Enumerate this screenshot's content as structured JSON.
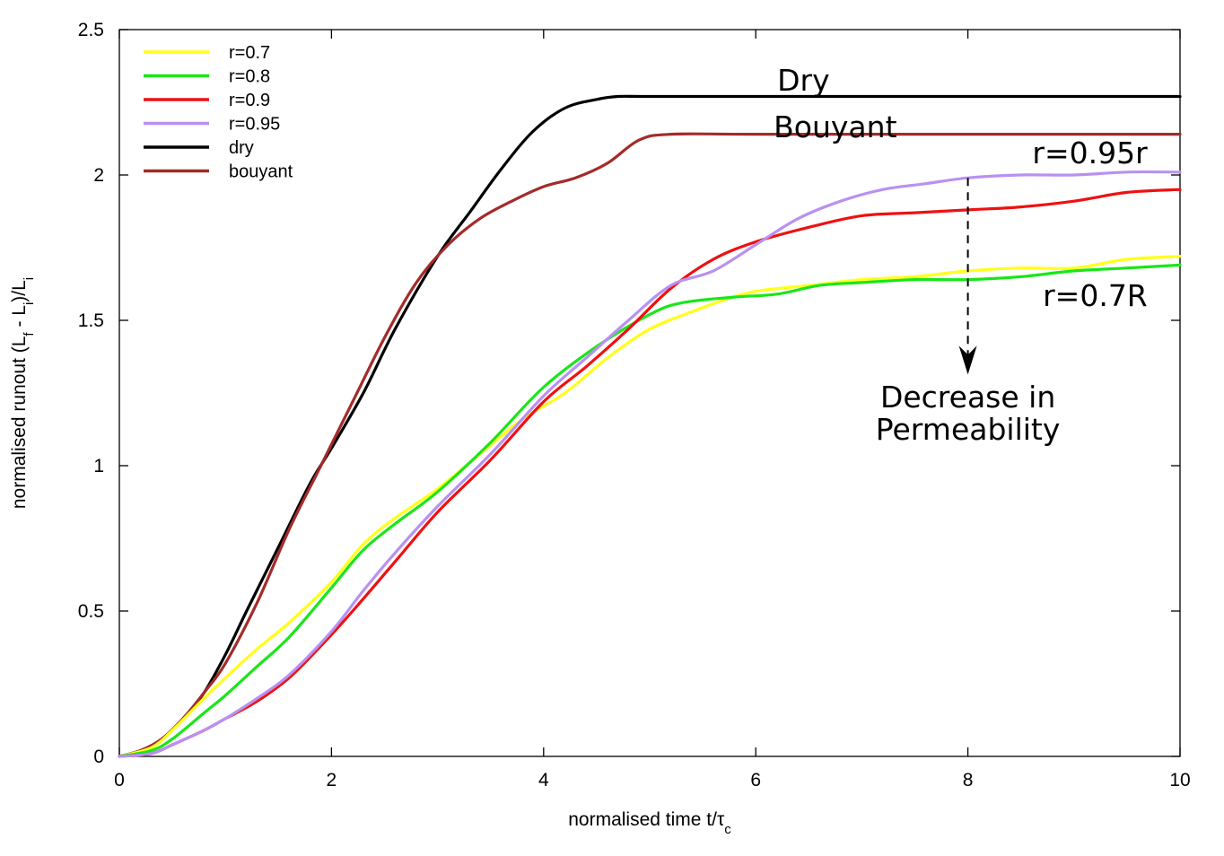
{
  "chart_data": {
    "type": "line",
    "title": "",
    "xlabel": {
      "main": "normalised time t/τ",
      "sub": "c"
    },
    "ylabel": {
      "parts": [
        "normalised runout (L",
        "f",
        " - L",
        "i",
        ")/L",
        "i"
      ]
    },
    "xlim": [
      0,
      10
    ],
    "ylim": [
      0,
      2.5
    ],
    "x_ticks": [
      0,
      2,
      4,
      6,
      8,
      10
    ],
    "x_tick_labels": [
      "0",
      "2",
      "4",
      "6",
      "8",
      "10"
    ],
    "y_ticks": [
      0,
      0.5,
      1,
      1.5,
      2,
      2.5
    ],
    "y_tick_labels": [
      "0",
      "0.5",
      "1",
      "1.5",
      "2",
      "2.5"
    ],
    "legend_position": "top-left",
    "series": [
      {
        "name": "r=0.7",
        "color": "#ffff1a",
        "x": [
          0,
          0.3,
          0.5,
          0.8,
          1.0,
          1.3,
          1.6,
          2.0,
          2.3,
          2.6,
          3.0,
          3.4,
          3.8,
          4.2,
          4.6,
          5.0,
          5.4,
          5.7,
          6.0,
          6.5,
          7.0,
          7.5,
          8.0,
          8.5,
          9.0,
          9.5,
          10.0
        ],
        "y": [
          0,
          0.03,
          0.09,
          0.2,
          0.27,
          0.37,
          0.46,
          0.6,
          0.73,
          0.82,
          0.92,
          1.04,
          1.16,
          1.25,
          1.37,
          1.47,
          1.53,
          1.57,
          1.6,
          1.62,
          1.64,
          1.65,
          1.67,
          1.68,
          1.68,
          1.71,
          1.72
        ]
      },
      {
        "name": "r=0.8",
        "color": "#19e619",
        "x": [
          0,
          0.3,
          0.5,
          0.8,
          1.0,
          1.3,
          1.6,
          2.0,
          2.3,
          2.6,
          3.0,
          3.5,
          4.0,
          4.5,
          5.0,
          5.3,
          5.8,
          6.2,
          6.6,
          7.0,
          7.5,
          8.0,
          8.5,
          9.0,
          9.5,
          10.0
        ],
        "y": [
          0,
          0.02,
          0.06,
          0.15,
          0.21,
          0.31,
          0.41,
          0.58,
          0.71,
          0.8,
          0.91,
          1.08,
          1.27,
          1.41,
          1.52,
          1.56,
          1.58,
          1.59,
          1.62,
          1.63,
          1.64,
          1.64,
          1.65,
          1.67,
          1.68,
          1.69
        ]
      },
      {
        "name": "r=0.9",
        "color": "#ee1111",
        "x": [
          0,
          0.3,
          0.5,
          0.8,
          1.0,
          1.3,
          1.6,
          1.9,
          2.2,
          2.6,
          3.0,
          3.5,
          4.0,
          4.4,
          4.8,
          5.2,
          5.6,
          6.0,
          6.5,
          7.0,
          7.5,
          8.0,
          8.5,
          9.0,
          9.5,
          10.0
        ],
        "y": [
          0,
          0.01,
          0.04,
          0.09,
          0.13,
          0.19,
          0.27,
          0.38,
          0.5,
          0.67,
          0.84,
          1.02,
          1.22,
          1.34,
          1.47,
          1.61,
          1.71,
          1.77,
          1.82,
          1.86,
          1.87,
          1.88,
          1.89,
          1.91,
          1.94,
          1.95
        ]
      },
      {
        "name": "r=0.95",
        "color": "#b891f2",
        "x": [
          0,
          0.3,
          0.5,
          0.8,
          1.0,
          1.3,
          1.6,
          2.0,
          2.3,
          2.6,
          3.0,
          3.5,
          4.0,
          4.4,
          4.8,
          5.2,
          5.6,
          6.0,
          6.4,
          6.8,
          7.2,
          7.6,
          8.0,
          8.5,
          9.0,
          9.5,
          10.0
        ],
        "y": [
          0,
          0.01,
          0.04,
          0.09,
          0.13,
          0.2,
          0.28,
          0.43,
          0.57,
          0.7,
          0.86,
          1.04,
          1.24,
          1.37,
          1.5,
          1.62,
          1.67,
          1.76,
          1.85,
          1.91,
          1.95,
          1.97,
          1.99,
          2.0,
          2.0,
          2.01,
          2.01
        ]
      },
      {
        "name": "dry",
        "color": "#000000",
        "x": [
          0,
          0.2,
          0.4,
          0.6,
          0.8,
          1.0,
          1.2,
          1.5,
          1.8,
          2.0,
          2.3,
          2.6,
          3.0,
          3.3,
          3.6,
          3.9,
          4.2,
          4.5,
          4.7,
          5.0,
          6.0,
          8.0,
          10.0
        ],
        "y": [
          0,
          0.02,
          0.06,
          0.13,
          0.22,
          0.35,
          0.5,
          0.72,
          0.94,
          1.06,
          1.25,
          1.47,
          1.72,
          1.87,
          2.02,
          2.15,
          2.23,
          2.26,
          2.27,
          2.27,
          2.27,
          2.27,
          2.27
        ]
      },
      {
        "name": "bouyant",
        "color": "#a52a2a",
        "x": [
          0,
          0.2,
          0.4,
          0.6,
          0.8,
          1.0,
          1.3,
          1.6,
          1.9,
          2.2,
          2.5,
          2.8,
          3.1,
          3.4,
          3.7,
          4.0,
          4.3,
          4.6,
          4.9,
          5.2,
          6.0,
          8.0,
          10.0
        ],
        "y": [
          0,
          0.02,
          0.06,
          0.13,
          0.22,
          0.32,
          0.53,
          0.78,
          1.0,
          1.22,
          1.44,
          1.63,
          1.76,
          1.85,
          1.91,
          1.96,
          1.99,
          2.04,
          2.12,
          2.14,
          2.14,
          2.14,
          2.14
        ]
      }
    ],
    "annotations": [
      {
        "text": "Dry",
        "x": 6.45,
        "y": 2.29
      },
      {
        "text": "Bouyant",
        "x": 6.75,
        "y": 2.13
      },
      {
        "text": "r=0.95r",
        "x": 9.15,
        "y": 2.04
      },
      {
        "text": "r=0.7R",
        "x": 9.2,
        "y": 1.55
      },
      {
        "text": "Decrease in",
        "x": 8.0,
        "y": 1.2
      },
      {
        "text": "Permeability",
        "x": 8.0,
        "y": 1.09
      }
    ],
    "arrow": {
      "x": 8.0,
      "y_start": 1.99,
      "y_end": 1.32,
      "style": "dashed"
    }
  }
}
